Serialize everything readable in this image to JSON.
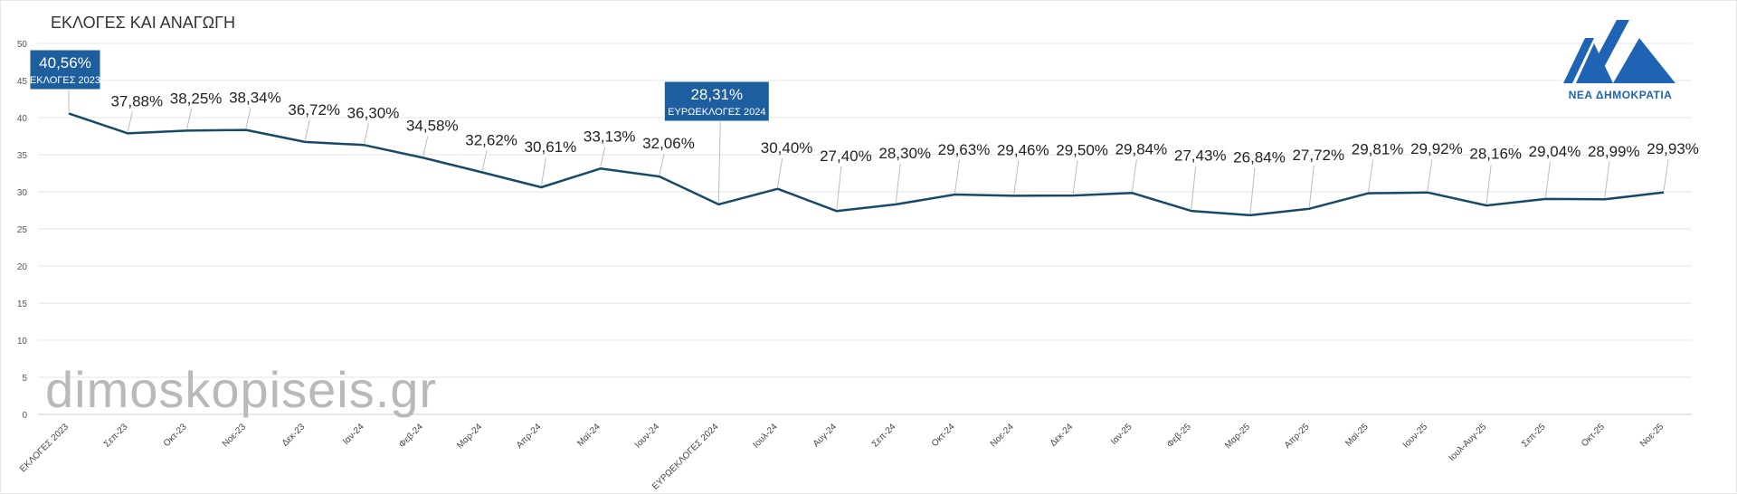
{
  "header": {
    "title": "ΕΚΛΟΓΕΣ ΚΑΙ ΑΝΑΓΩΓΗ"
  },
  "watermark": "dimoskopiseis.gr",
  "logo": {
    "icon": "nd-party-logo-icon",
    "text": "ΝΕΑ ΔΗΜΟΚΡΑΤΙΑ",
    "color": "#1f63b4"
  },
  "chart_data": {
    "type": "line",
    "title": "ΕΚΛΟΓΕΣ ΚΑΙ ΑΝΑΓΩΓΗ",
    "xlabel": "",
    "ylabel": "",
    "ylim": [
      0,
      50
    ],
    "yticks": [
      0,
      5,
      10,
      15,
      20,
      25,
      30,
      35,
      40,
      45,
      50
    ],
    "grid": true,
    "line_color": "#174a66",
    "highlight_color": "#1d5e9e",
    "categories": [
      "ΕΚΛΟΓΕΣ 2023",
      "Σεπ-23",
      "Οκτ-23",
      "Νοε-23",
      "Δεκ-23",
      "Ιαν-24",
      "Φεβ-24",
      "Μαρ-24",
      "Απρ-24",
      "Μαϊ-24",
      "Ιουν-24",
      "ΕΥΡΩΕΚΛΟΓΕΣ 2024",
      "Ιουλ-24",
      "Αυγ-24",
      "Σεπ-24",
      "Οκτ-24",
      "Νοε-24",
      "Δεκ-24",
      "Ιαν-25",
      "Φεβ-25",
      "Μαρ-25",
      "Απρ-25",
      "Μαϊ-25",
      "Ιουν-25",
      "Ιουλ-Αυγ-25",
      "Σεπ-25",
      "Οκτ-25",
      "Νοε-25"
    ],
    "values": [
      40.56,
      37.88,
      38.25,
      38.34,
      36.72,
      36.3,
      34.58,
      32.62,
      30.61,
      33.13,
      32.06,
      28.31,
      30.4,
      27.4,
      28.3,
      29.63,
      29.46,
      29.5,
      29.84,
      27.43,
      26.84,
      27.72,
      29.81,
      29.92,
      28.16,
      29.04,
      28.99,
      29.93
    ],
    "labels": [
      "40,56%",
      "37,88%",
      "38,25%",
      "38,34%",
      "36,72%",
      "36,30%",
      "34,58%",
      "32,62%",
      "30,61%",
      "33,13%",
      "32,06%",
      "28,31%",
      "30,40%",
      "27,40%",
      "28,30%",
      "29,63%",
      "29,46%",
      "29,50%",
      "29,84%",
      "27,43%",
      "26,84%",
      "27,72%",
      "29,81%",
      "29,92%",
      "28,16%",
      "29,04%",
      "28,99%",
      "29,93%"
    ],
    "highlights": [
      {
        "index": 0,
        "value_label": "40,56%",
        "note": "ΕΚΛΟΓΕΣ 2023"
      },
      {
        "index": 11,
        "value_label": "28,31%",
        "note": "ΕΥΡΩΕΚΛΟΓΕΣ 2024"
      }
    ]
  }
}
